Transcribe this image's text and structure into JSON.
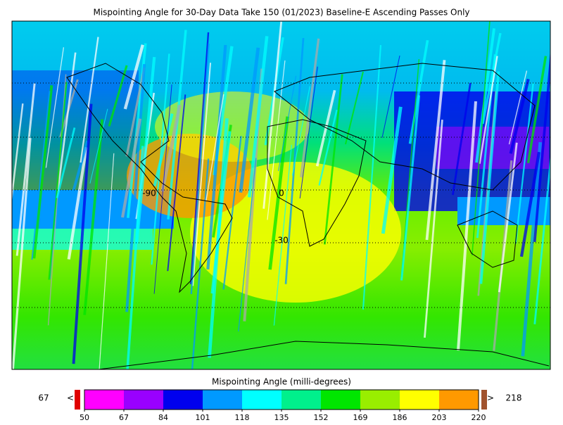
{
  "title": "Mispointing Angle for 30-Day Data Take 150 (01/2023) Baseline-E Ascending Passes Only",
  "map": {
    "labels": [
      "-90",
      "0",
      "-30"
    ]
  },
  "colorbar": {
    "label": "Mispointing Angle (milli-degrees)",
    "ticks": [
      50,
      67,
      84,
      101,
      118,
      135,
      152,
      169,
      186,
      203,
      220
    ],
    "colors": [
      "#ff00ff",
      "#9900ff",
      "#0000ee",
      "#0099ff",
      "#00ffff",
      "#00f08c",
      "#00e600",
      "#99ee00",
      "#ffff00",
      "#ff9900"
    ],
    "under_color": "#e00000",
    "over_color": "#a0522d",
    "under_label": "67",
    "under_arrow": "<",
    "over_label": "218",
    "over_arrow": ">"
  }
}
